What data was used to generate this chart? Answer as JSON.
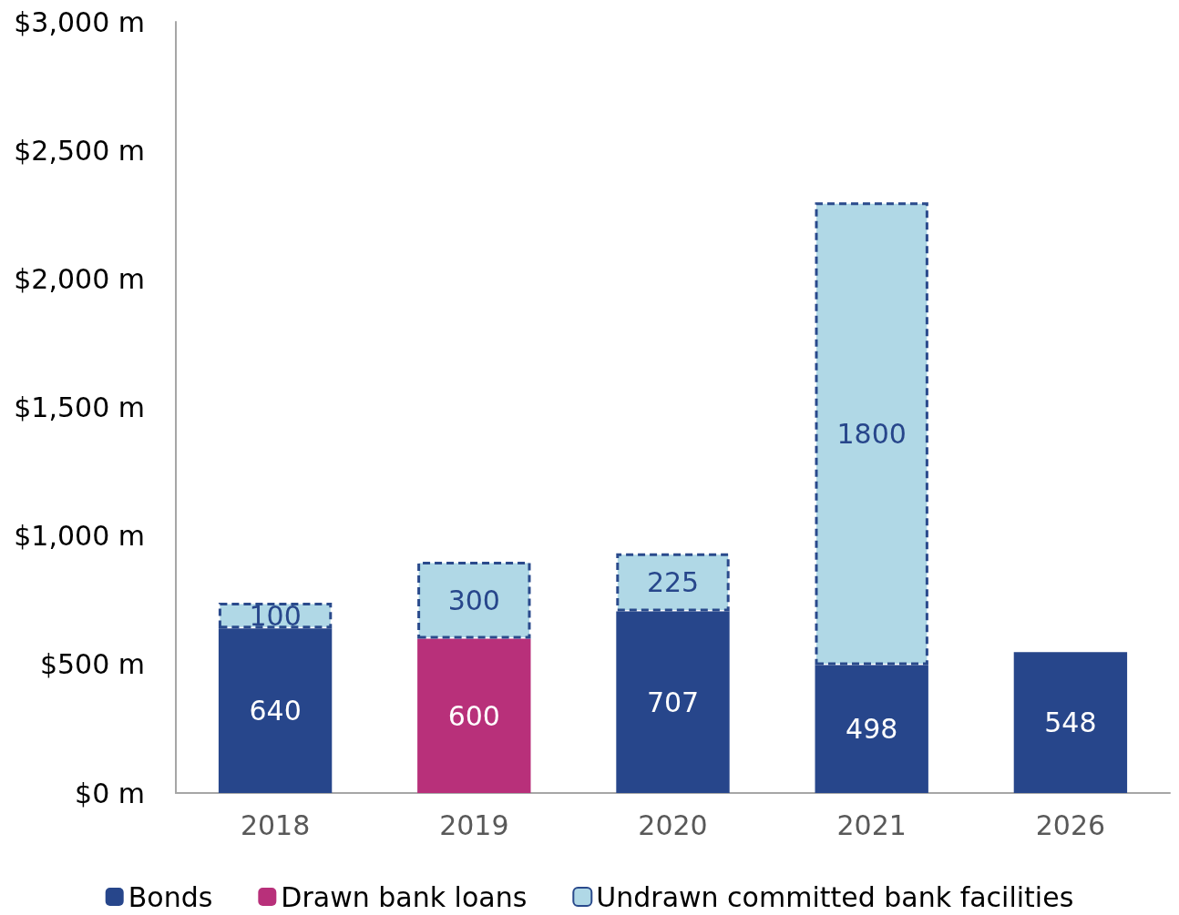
{
  "chart_data": {
    "type": "bar",
    "stacked": true,
    "categories": [
      "2018",
      "2019",
      "2020",
      "2021",
      "2026"
    ],
    "series": [
      {
        "name": "Bonds",
        "color": "#27468b",
        "values": [
          640,
          null,
          707,
          498,
          548
        ]
      },
      {
        "name": "Drawn bank loans",
        "color": "#b8307a",
        "values": [
          null,
          600,
          null,
          null,
          null
        ]
      },
      {
        "name": "Undrawn committed bank facilities",
        "color": "#b0d8e6",
        "values": [
          100,
          300,
          225,
          1800,
          null
        ],
        "line_style": "dashed"
      }
    ],
    "ylim": [
      0,
      3000
    ],
    "yticks": [
      {
        "value": 0,
        "label": "$0 m"
      },
      {
        "value": 500,
        "label": "$500 m"
      },
      {
        "value": 1000,
        "label": "$1,000 m"
      },
      {
        "value": 1500,
        "label": "$1,500 m"
      },
      {
        "value": 2000,
        "label": "$2,000 m"
      },
      {
        "value": 2500,
        "label": "$2,500 m"
      },
      {
        "value": 3000,
        "label": "$3,000 m"
      }
    ],
    "data_labels": true,
    "grid": false,
    "legend": "bottom"
  }
}
